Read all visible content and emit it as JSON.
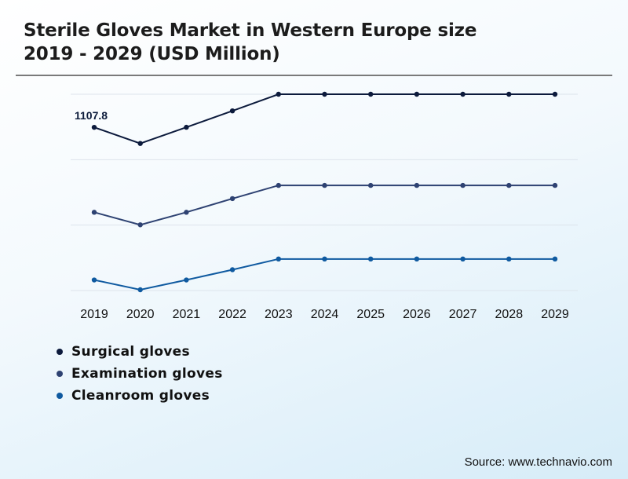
{
  "header": {
    "title_line1": "Sterile Gloves Market in Western Europe size",
    "title_line2": "2019 - 2029 (USD Million)"
  },
  "footer": {
    "source": "Source: www.technavio.com"
  },
  "chart_data": {
    "type": "line",
    "x": [
      "2019",
      "2020",
      "2021",
      "2022",
      "2023",
      "2024",
      "2025",
      "2026",
      "2027",
      "2028",
      "2029"
    ],
    "grid": true,
    "legend_position": "bottom-left",
    "series": [
      {
        "name": "Surgical gloves",
        "color": "#0c1a3c",
        "values": [
          1107.8,
          1037,
          1108,
          1180,
          1253,
          1253,
          1253,
          1253,
          1253,
          1253,
          1253
        ]
      },
      {
        "name": "Examination gloves",
        "color": "#2e4272",
        "values": [
          735,
          680,
          735,
          795,
          853,
          853,
          853,
          853,
          853,
          853,
          853
        ]
      },
      {
        "name": "Cleanroom gloves",
        "color": "#0f5aa0",
        "values": [
          438,
          395,
          438,
          483,
          530,
          530,
          530,
          530,
          530,
          530,
          530
        ]
      }
    ],
    "annotations": [
      {
        "series": 0,
        "point": 0,
        "text": "1107.8"
      }
    ]
  }
}
